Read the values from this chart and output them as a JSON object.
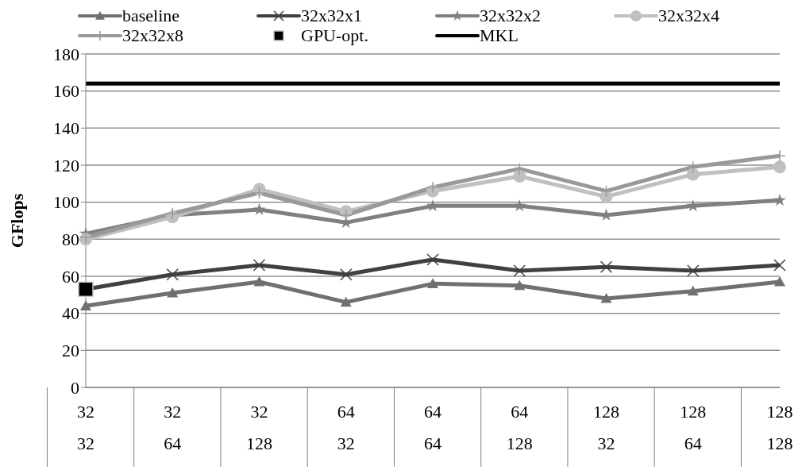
{
  "chart_data": {
    "type": "line",
    "ylabel": "GFlops",
    "categories": [
      "32\n32",
      "32\n64",
      "32\n128",
      "64\n32",
      "64\n64",
      "64\n128",
      "128\n32",
      "128\n64",
      "128\n128"
    ],
    "series": [
      {
        "name": "baseline",
        "color": "#707070",
        "marker": "triangle",
        "values": [
          44,
          51,
          57,
          46,
          56,
          55,
          48,
          52,
          57
        ]
      },
      {
        "name": "32x32x1",
        "color": "#404040",
        "marker": "cross",
        "values": [
          53,
          61,
          66,
          61,
          69,
          63,
          65,
          63,
          66
        ]
      },
      {
        "name": "32x32x2",
        "color": "#808080",
        "marker": "star",
        "values": [
          83,
          93,
          96,
          89,
          98,
          98,
          93,
          98,
          101
        ]
      },
      {
        "name": "32x32x4",
        "color": "#c0c0c0",
        "marker": "circle",
        "values": [
          80,
          92,
          107,
          95,
          106,
          114,
          103,
          115,
          119
        ]
      },
      {
        "name": "32x32x8",
        "color": "#999999",
        "marker": "plus",
        "values": [
          81,
          94,
          105,
          93,
          108,
          118,
          106,
          119,
          125
        ]
      },
      {
        "name": "GPU-opt.",
        "type": "scatter",
        "color": "#000000",
        "marker": "square",
        "values": [
          53,
          null,
          null,
          null,
          null,
          null,
          null,
          null,
          null
        ]
      },
      {
        "name": "MKL",
        "color": "#000000",
        "marker": "none",
        "values": [
          164,
          164,
          164,
          164,
          164,
          164,
          164,
          164,
          164
        ]
      }
    ],
    "ylim": [
      0,
      180
    ],
    "yticks": [
      0,
      20,
      40,
      60,
      80,
      100,
      120,
      140,
      160,
      180
    ],
    "grid": "y",
    "legend": "top"
  }
}
